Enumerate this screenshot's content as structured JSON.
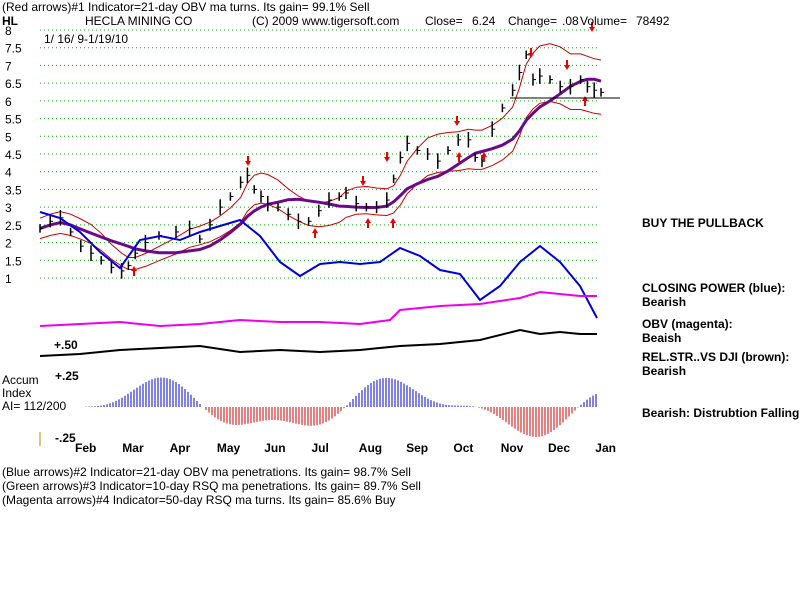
{
  "header": {
    "line1": "(Red arrows)#1 Indicator=21-day OBV ma turns. Its gain= 99.1% Sell",
    "symbol": "HL",
    "company": "HECLA MINING CO",
    "copyright": "(C) 2009 www.tigersoft.com",
    "close_label": "Close=",
    "close_value": "6.24",
    "change_label": "Change=",
    "change_value": ".08",
    "volume_label": "Volume=",
    "volume_value": "78492",
    "date_range": "1/ 16/ 9-1/19/10"
  },
  "footer": {
    "line1": "(Blue arrows)#2 Indicator=21-day OBV ma penetrations. Its gain= 98.7% Sell",
    "line2": "(Green arrows)#3 Indicator=10-day RSQ ma penetrations. Its gain= 89.7% Sell",
    "line3": "(Magenta arrows)#4 Indicator=50-day RSQ ma turns. Its gain= 85.6% Buy"
  },
  "sidebar": {
    "buy": "BUY THE PULLBACK",
    "cp_label": "CLOSING POWER (blue):",
    "cp_value": "Bearish",
    "obv_label": "OBV (magenta):",
    "obv_value": "Beaish",
    "rs_label": "REL.STR..VS DJI (brown):",
    "rs_value": "Bearish",
    "accum_note": "Bearish: Distrubtion Falling."
  },
  "accum": {
    "title1": "Accum",
    "title2": "Index",
    "ai": "AI= 112/200",
    "top_label": "+.50",
    "mid_label": "+.25",
    "bottom_label": "-.25"
  },
  "colors": {
    "price": "#000000",
    "band": "#cc0000",
    "ma": "#6a0a8a",
    "closing_power": "#0000dd",
    "obv": "#ee00ee",
    "rel_strength": "#000000",
    "accum_pos": "#0000cc",
    "accum_neg": "#cc0000",
    "arrow": "#ee0000",
    "grid": "#00aa00"
  },
  "chart_data": {
    "type": "line",
    "ylim": [
      0.5,
      8
    ],
    "y_ticks": [
      "1",
      "1.5",
      "2",
      "2.5",
      "3",
      "3.5",
      "4",
      "4.5",
      "5",
      "5.5",
      "6",
      "6.5",
      "7",
      "7.5",
      "8"
    ],
    "months": [
      "Feb",
      "Mar",
      "Apr",
      "May",
      "Jun",
      "Jul",
      "Aug",
      "Sep",
      "Oct",
      "Nov",
      "Dec",
      "Jan"
    ],
    "price_series": [
      [
        0,
        2.4
      ],
      [
        6,
        2.6
      ],
      [
        12,
        2.7
      ],
      [
        18,
        2.3
      ],
      [
        24,
        1.9
      ],
      [
        30,
        1.7
      ],
      [
        36,
        1.5
      ],
      [
        42,
        1.3
      ],
      [
        48,
        1.2
      ],
      [
        52,
        1.35
      ],
      [
        56,
        1.7
      ],
      [
        62,
        2.0
      ],
      [
        70,
        2.2
      ],
      [
        80,
        2.3
      ],
      [
        88,
        2.4
      ],
      [
        94,
        2.1
      ],
      [
        100,
        2.5
      ],
      [
        106,
        3.0
      ],
      [
        112,
        3.3
      ],
      [
        118,
        3.7
      ],
      [
        122,
        3.9
      ],
      [
        126,
        3.5
      ],
      [
        130,
        3.3
      ],
      [
        134,
        3.1
      ],
      [
        140,
        3.0
      ],
      [
        146,
        2.8
      ],
      [
        152,
        2.6
      ],
      [
        158,
        2.6
      ],
      [
        164,
        2.9
      ],
      [
        170,
        3.2
      ],
      [
        176,
        3.3
      ],
      [
        180,
        3.4
      ],
      [
        186,
        3.1
      ],
      [
        192,
        3.0
      ],
      [
        198,
        3.0
      ],
      [
        204,
        3.2
      ],
      [
        208,
        3.8
      ],
      [
        212,
        4.4
      ],
      [
        216,
        4.8
      ],
      [
        222,
        4.6
      ],
      [
        228,
        4.5
      ],
      [
        234,
        4.3
      ],
      [
        240,
        4.6
      ],
      [
        246,
        4.9
      ],
      [
        252,
        4.9
      ],
      [
        256,
        4.4
      ],
      [
        260,
        4.3
      ],
      [
        266,
        5.2
      ],
      [
        272,
        5.8
      ],
      [
        278,
        6.3
      ],
      [
        282,
        6.8
      ],
      [
        286,
        7.3
      ],
      [
        290,
        6.6
      ],
      [
        294,
        6.7
      ],
      [
        300,
        6.6
      ],
      [
        306,
        6.4
      ],
      [
        312,
        6.4
      ],
      [
        318,
        6.6
      ],
      [
        322,
        6.4
      ],
      [
        326,
        6.3
      ],
      [
        330,
        6.24
      ]
    ],
    "series": [
      {
        "name": "CLOSING POWER (blue)",
        "role": "closing_power"
      },
      {
        "name": "OBV (magenta)",
        "role": "obv"
      },
      {
        "name": "REL.STR..VS DJI (brown)",
        "role": "rel_strength"
      }
    ]
  }
}
